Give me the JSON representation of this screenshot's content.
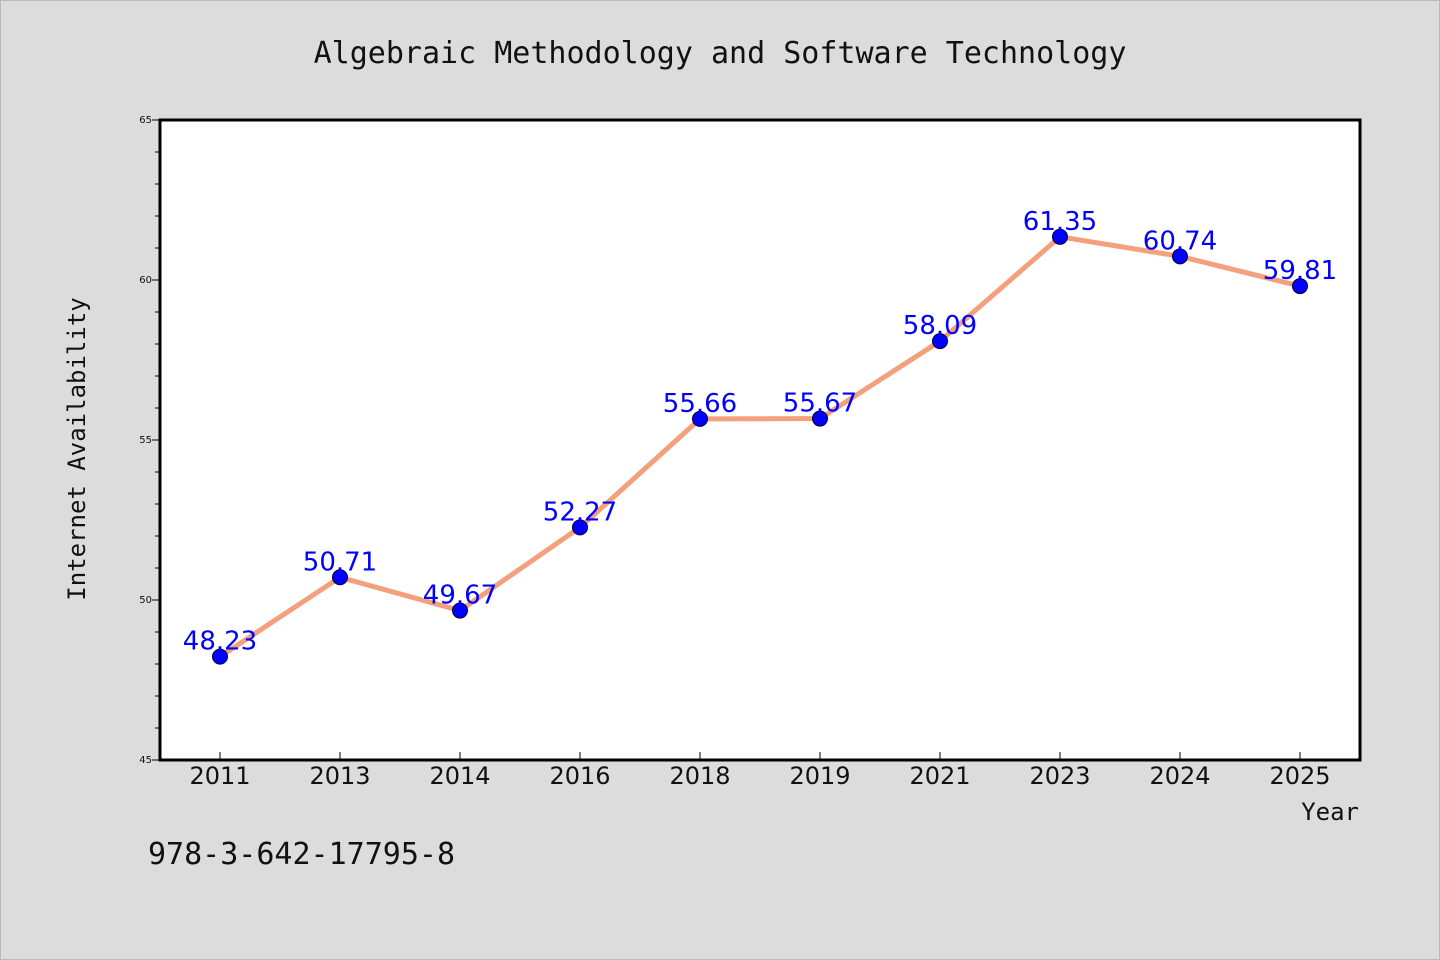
{
  "chart_data": {
    "type": "line",
    "title": "Algebraic Methodology and Software Technology",
    "xlabel": "Year",
    "ylabel": "Internet Availability",
    "categories": [
      "2011",
      "2013",
      "2014",
      "2016",
      "2018",
      "2019",
      "2021",
      "2023",
      "2024",
      "2025"
    ],
    "values": [
      48.23,
      50.71,
      49.67,
      52.27,
      55.66,
      55.67,
      58.09,
      61.35,
      60.74,
      59.81
    ],
    "data_labels": [
      "48.23",
      "50.71",
      "49.67",
      "52.27",
      "55.66",
      "55.67",
      "58.09",
      "61.35",
      "60.74",
      "59.81"
    ],
    "ylim": [
      45,
      65
    ],
    "yticks": [
      45,
      50,
      55,
      60,
      65
    ],
    "grid": false,
    "line_color": "#f4a07c",
    "marker_color": "#0000ff",
    "data_label_color": "#0000ff"
  },
  "footer_text": "978-3-642-17795-8"
}
